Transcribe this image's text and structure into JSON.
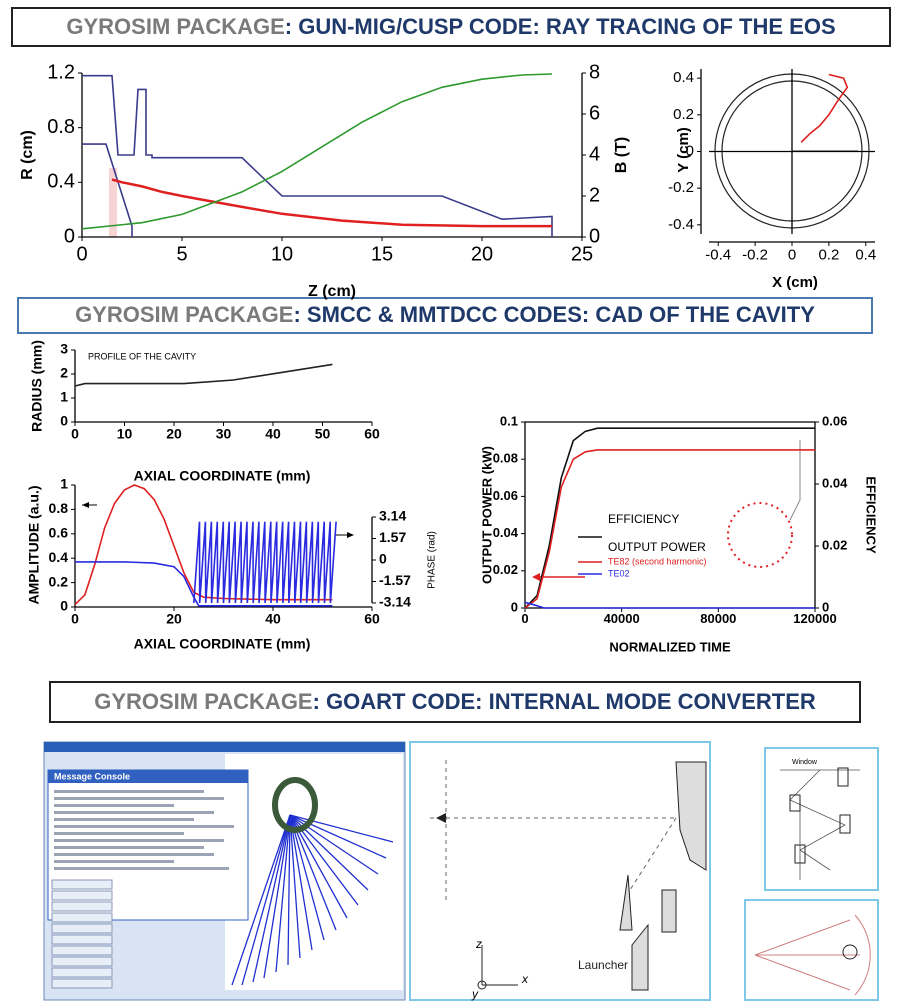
{
  "headers": [
    {
      "prefix": "GYROSIM PACKAGE",
      "title": ": GUN-MIG/CUSP CODE: RAY TRACING OF THE EOS"
    },
    {
      "prefix": "GYROSIM PACKAGE",
      "title": ": SMCC & MMTDCC CODES: CAD OF THE CAVITY"
    },
    {
      "prefix": "GYROSIM PACKAGE",
      "title": ": GOART CODE: INTERNAL MODE CONVERTER"
    }
  ],
  "chart_data": [
    {
      "type": "line",
      "xlabel": "Z (cm)",
      "ylabel": "R (cm)",
      "y2label": "B (T)",
      "xlim": [
        0,
        25
      ],
      "xticks": [
        0,
        5,
        10,
        15,
        20,
        25
      ],
      "ylim": [
        0,
        1.2
      ],
      "yticks": [
        0,
        0.4,
        0.8,
        1.2
      ],
      "y2lim": [
        0,
        8
      ],
      "y2ticks": [
        0,
        2,
        4,
        6,
        8
      ],
      "series": [
        {
          "color": "#3b3b8c",
          "x": [
            0,
            1.5,
            1.8,
            2.6,
            2.8,
            3.2,
            3.2,
            3.5,
            3.5,
            8,
            10,
            18,
            21,
            23.5,
            23.5
          ],
          "values": [
            1.18,
            1.18,
            0.6,
            0.6,
            1.08,
            1.08,
            0.6,
            0.6,
            0.58,
            0.58,
            0.3,
            0.3,
            0.13,
            0.15,
            0
          ]
        },
        {
          "color": "#3b3b8c",
          "x": [
            0,
            1.2,
            2.5,
            2.5
          ],
          "values": [
            0.68,
            0.68,
            0.08,
            0
          ]
        },
        {
          "color": "#e02020",
          "x": [
            1.5,
            2,
            3,
            4,
            5,
            6.5,
            8,
            10,
            13,
            16,
            20,
            23.5
          ],
          "values": [
            0.42,
            0.4,
            0.37,
            0.33,
            0.3,
            0.26,
            0.22,
            0.17,
            0.12,
            0.09,
            0.08,
            0.08
          ]
        },
        {
          "color": "#2e9a2e",
          "axis": "y2",
          "x": [
            0,
            3,
            5,
            8,
            10,
            12,
            14,
            16,
            18,
            20,
            22,
            23.5
          ],
          "values": [
            0.4,
            0.7,
            1.1,
            2.2,
            3.2,
            4.4,
            5.6,
            6.6,
            7.3,
            7.7,
            7.9,
            7.95
          ]
        }
      ]
    },
    {
      "type": "line",
      "xlabel": "X (cm)",
      "ylabel": "Y (cm)",
      "xlim": [
        -0.45,
        0.45
      ],
      "xticks": [
        -0.4,
        -0.2,
        0,
        0.2,
        0.4
      ],
      "ylim": [
        -0.45,
        0.45
      ],
      "yticks": [
        -0.4,
        -0.2,
        0,
        0.2,
        0.4
      ],
      "series": [
        {
          "color": "#e02020",
          "x": [
            0.05,
            0.1,
            0.15,
            0.2,
            0.25,
            0.3,
            0.28,
            0.2
          ],
          "values": [
            0.05,
            0.1,
            0.14,
            0.2,
            0.28,
            0.35,
            0.4,
            0.42
          ]
        }
      ]
    },
    {
      "type": "line",
      "annotation": "PROFILE OF THE CAVITY",
      "xlabel": "AXIAL COORDINATE (mm)",
      "ylabel": "RADIUS (mm)",
      "xlim": [
        0,
        60
      ],
      "xticks": [
        0,
        10,
        20,
        30,
        40,
        50,
        60
      ],
      "ylim": [
        0,
        3
      ],
      "yticks": [
        0,
        1,
        2,
        3
      ],
      "series": [
        {
          "color": "#222222",
          "x": [
            0,
            2,
            22,
            32,
            52
          ],
          "values": [
            1.5,
            1.6,
            1.6,
            1.75,
            2.4
          ]
        }
      ]
    },
    {
      "type": "line",
      "xlabel": "AXIAL COORDINATE (mm)",
      "ylabel": "AMPLITUDE (a.u.)",
      "y2label": "PHASE (rad)",
      "xlim": [
        0,
        60
      ],
      "xticks": [
        0,
        20,
        40,
        60
      ],
      "ylim": [
        0,
        1
      ],
      "yticks": [
        0,
        0.2,
        0.4,
        0.6,
        0.8,
        1
      ],
      "y2lim": [
        -3.14,
        3.14
      ],
      "y2ticks": [
        -3.14,
        -1.57,
        0,
        1.57,
        3.14
      ],
      "series": [
        {
          "color": "#e02020",
          "x": [
            0,
            2,
            4,
            6,
            8,
            10,
            12,
            14,
            16,
            18,
            20,
            22,
            24,
            26,
            30,
            40,
            52
          ],
          "values": [
            0.02,
            0.1,
            0.35,
            0.65,
            0.85,
            0.96,
            1,
            0.97,
            0.88,
            0.72,
            0.5,
            0.28,
            0.12,
            0.08,
            0.07,
            0.06,
            0.06
          ]
        },
        {
          "color": "#2a2ae0",
          "x": [
            0,
            10,
            16,
            20,
            22,
            24,
            25,
            52
          ],
          "values": [
            0.37,
            0.37,
            0.36,
            0.33,
            0.25,
            0.08,
            0.01,
            0.01
          ]
        },
        {
          "color": "#2a2ae0",
          "axis": "y2",
          "x": [
            24,
            25.15,
            25.2,
            26.35,
            26.4,
            27.55,
            27.6,
            28.75,
            28.8,
            29.95,
            30,
            31.15,
            31.2,
            32.35,
            32.4,
            33.55,
            33.6,
            34.75,
            34.8,
            35.95,
            36,
            37.15,
            37.2,
            38.35,
            38.4,
            39.55,
            39.6,
            40.75,
            40.8,
            41.95,
            42,
            43.15,
            43.2,
            44.35,
            44.4,
            45.55,
            45.6,
            46.75,
            46.8,
            47.95,
            48,
            49.15,
            49.2,
            50.35,
            50.4,
            51.55,
            51.6,
            52.75
          ],
          "values": [
            -3.14,
            2.8,
            -3.14,
            2.8,
            -3.14,
            2.8,
            -3.14,
            2.8,
            -3.14,
            2.8,
            -3.14,
            2.8,
            -3.14,
            2.8,
            -3.14,
            2.8,
            -3.14,
            2.8,
            -3.14,
            2.8,
            -3.14,
            2.8,
            -3.14,
            2.8,
            -3.14,
            2.8,
            -3.14,
            2.8,
            -3.14,
            2.8,
            -3.14,
            2.8,
            -3.14,
            2.8,
            -3.14,
            2.8,
            -3.14,
            2.8,
            -3.14,
            2.8,
            -3.14,
            2.8,
            -3.14,
            2.8,
            -3.14,
            2.8,
            -3.14,
            2.8
          ]
        }
      ]
    },
    {
      "type": "line",
      "xlabel": "NORMALIZED TIME",
      "ylabel": "OUTPUT POWER (kW)",
      "y2label": "EFFICIENCY",
      "legend_title": "OUTPUT POWER",
      "xlim": [
        0,
        120000
      ],
      "xticks": [
        0,
        40000,
        80000,
        120000
      ],
      "ylim": [
        0,
        0.1
      ],
      "yticks": [
        0,
        0.02,
        0.04,
        0.06,
        0.08,
        0.1
      ],
      "y2lim": [
        0,
        0.06
      ],
      "y2ticks": [
        0,
        0.02,
        0.04,
        0.06
      ],
      "series": [
        {
          "name": "EFFICIENCY",
          "color": "#111111",
          "axis": "y2",
          "x": [
            0,
            5000,
            10000,
            15000,
            20000,
            25000,
            30000,
            40000,
            120000
          ],
          "values": [
            0,
            0.004,
            0.02,
            0.042,
            0.054,
            0.057,
            0.058,
            0.058,
            0.058
          ]
        },
        {
          "name": "TE82 (second harmonic)",
          "color": "#e02020",
          "x": [
            0,
            5000,
            10000,
            15000,
            20000,
            25000,
            30000,
            120000
          ],
          "values": [
            0,
            0.005,
            0.03,
            0.065,
            0.08,
            0.084,
            0.085,
            0.085
          ]
        },
        {
          "name": "TE02",
          "color": "#2a2ae0",
          "x": [
            0,
            3000,
            8000,
            120000
          ],
          "values": [
            0.003,
            0.002,
            0,
            0
          ]
        }
      ]
    }
  ],
  "converter": {
    "console_title": "Message Console",
    "launcher": "Launcher",
    "window": "Window",
    "axes": [
      "z",
      "x",
      "y"
    ]
  }
}
